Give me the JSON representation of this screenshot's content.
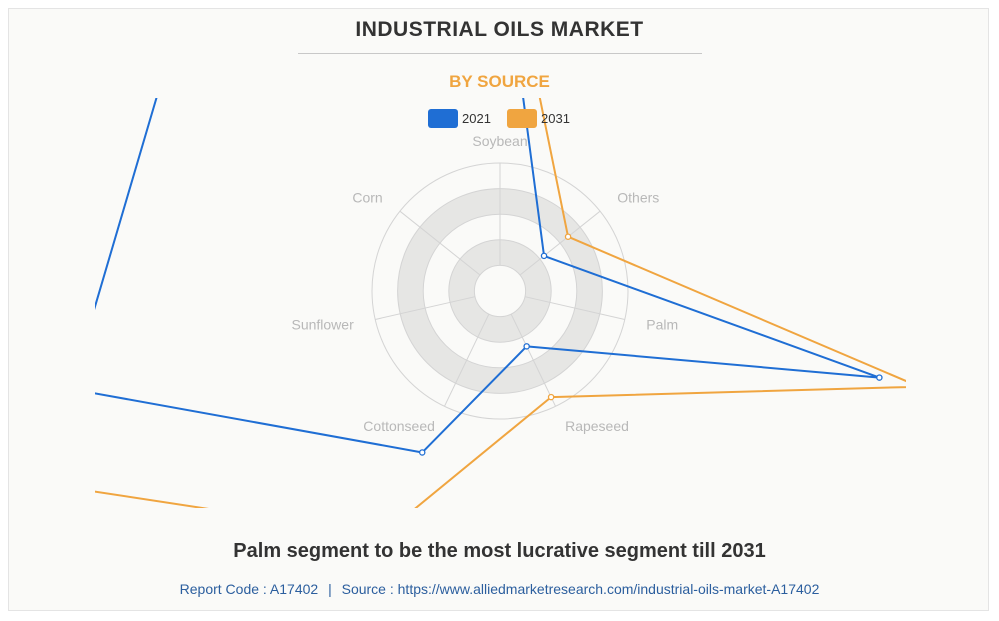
{
  "header": {
    "title": "INDUSTRIAL OILS MARKET",
    "subtitle": "BY SOURCE"
  },
  "colors": {
    "series_2021": "#1f6ed4",
    "series_2031": "#f0a540",
    "subtitle": "#f0a540",
    "grid_band": "#e6e6e4",
    "grid_line": "#d4d4d4",
    "footer_text": "#2b5e9e"
  },
  "chart_data": {
    "type": "radar",
    "categories": [
      "Soybean",
      "Others",
      "Palm",
      "Rapeseed",
      "Cottonseed",
      "Sunflower",
      "Corn"
    ],
    "series": [
      {
        "name": "2021",
        "values": [
          7.2,
          1.1,
          7.6,
          1.2,
          3.5,
          8.6,
          8.1
        ]
      },
      {
        "name": "2031",
        "values": [
          7.6,
          1.7,
          8.4,
          2.3,
          5.3,
          13.8,
          12.9
        ]
      }
    ],
    "radial_max": 2.5,
    "legend_position": "top-center"
  },
  "caption": "Palm segment to be the most lucrative segment till 2031",
  "footer": {
    "report_code": "Report Code : A17402",
    "separator": "|",
    "source": "Source : https://www.alliedmarketresearch.com/industrial-oils-market-A17402"
  }
}
